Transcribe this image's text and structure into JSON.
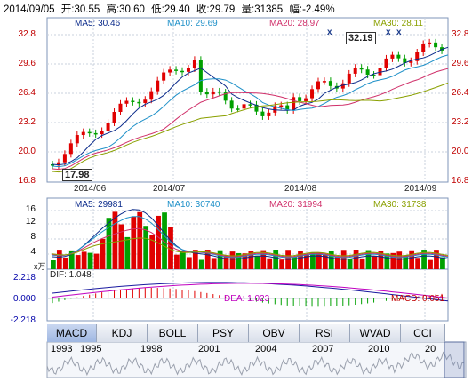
{
  "header": {
    "date": "2014/09/05",
    "open": "开:30.55",
    "high": "高:30.60",
    "low": "低:29.40",
    "close": "收:29.79",
    "volume": "量:31385",
    "change": "幅:-2.49%"
  },
  "price_panel": {
    "ma_labels": [
      {
        "text": "MA5: 30.46",
        "color": "#0a2a8a"
      },
      {
        "text": "MA10: 29.69",
        "color": "#1e90c8"
      },
      {
        "text": "MA20: 28.97",
        "color": "#d0306a"
      },
      {
        "text": "MA30: 28.11",
        "color": "#8aa000"
      }
    ],
    "y_ticks": [
      "32.8",
      "29.6",
      "26.4",
      "23.2",
      "20.0",
      "16.8"
    ],
    "x_ticks": [
      "2014/06",
      "2014/07",
      "2014/08",
      "2014/09"
    ],
    "callout_high": "32.19",
    "callout_low": "17.98",
    "markers": [
      "x",
      "x",
      "x"
    ]
  },
  "volume_panel": {
    "ma_labels": [
      {
        "text": "MA5: 29981",
        "color": "#0a2a8a"
      },
      {
        "text": "MA10: 30740",
        "color": "#1e90c8"
      },
      {
        "text": "MA20: 31994",
        "color": "#d0306a"
      },
      {
        "text": "MA30: 31738",
        "color": "#8aa000"
      }
    ],
    "y_ticks": [
      "16",
      "12",
      "8",
      "4"
    ],
    "unit": "x万"
  },
  "macd_panel": {
    "dif": "DIF: 1.048",
    "dea": "DEA: 1.023",
    "macd": "MACD: 0.051",
    "y_ticks": [
      "2.218",
      "0.000",
      "-2.218"
    ]
  },
  "tabs": [
    "MACD",
    "KDJ",
    "BOLL",
    "PSY",
    "OBV",
    "RSI",
    "WVAD",
    "CCI"
  ],
  "active_tab": "MACD",
  "years": [
    "1993",
    "1995",
    "1998",
    "2001",
    "2004",
    "2007",
    "2010",
    "20"
  ],
  "colors": {
    "up": "#e00000",
    "down": "#00a000",
    "grid": "#c8d0dc",
    "axis": "#7f95b9"
  }
}
